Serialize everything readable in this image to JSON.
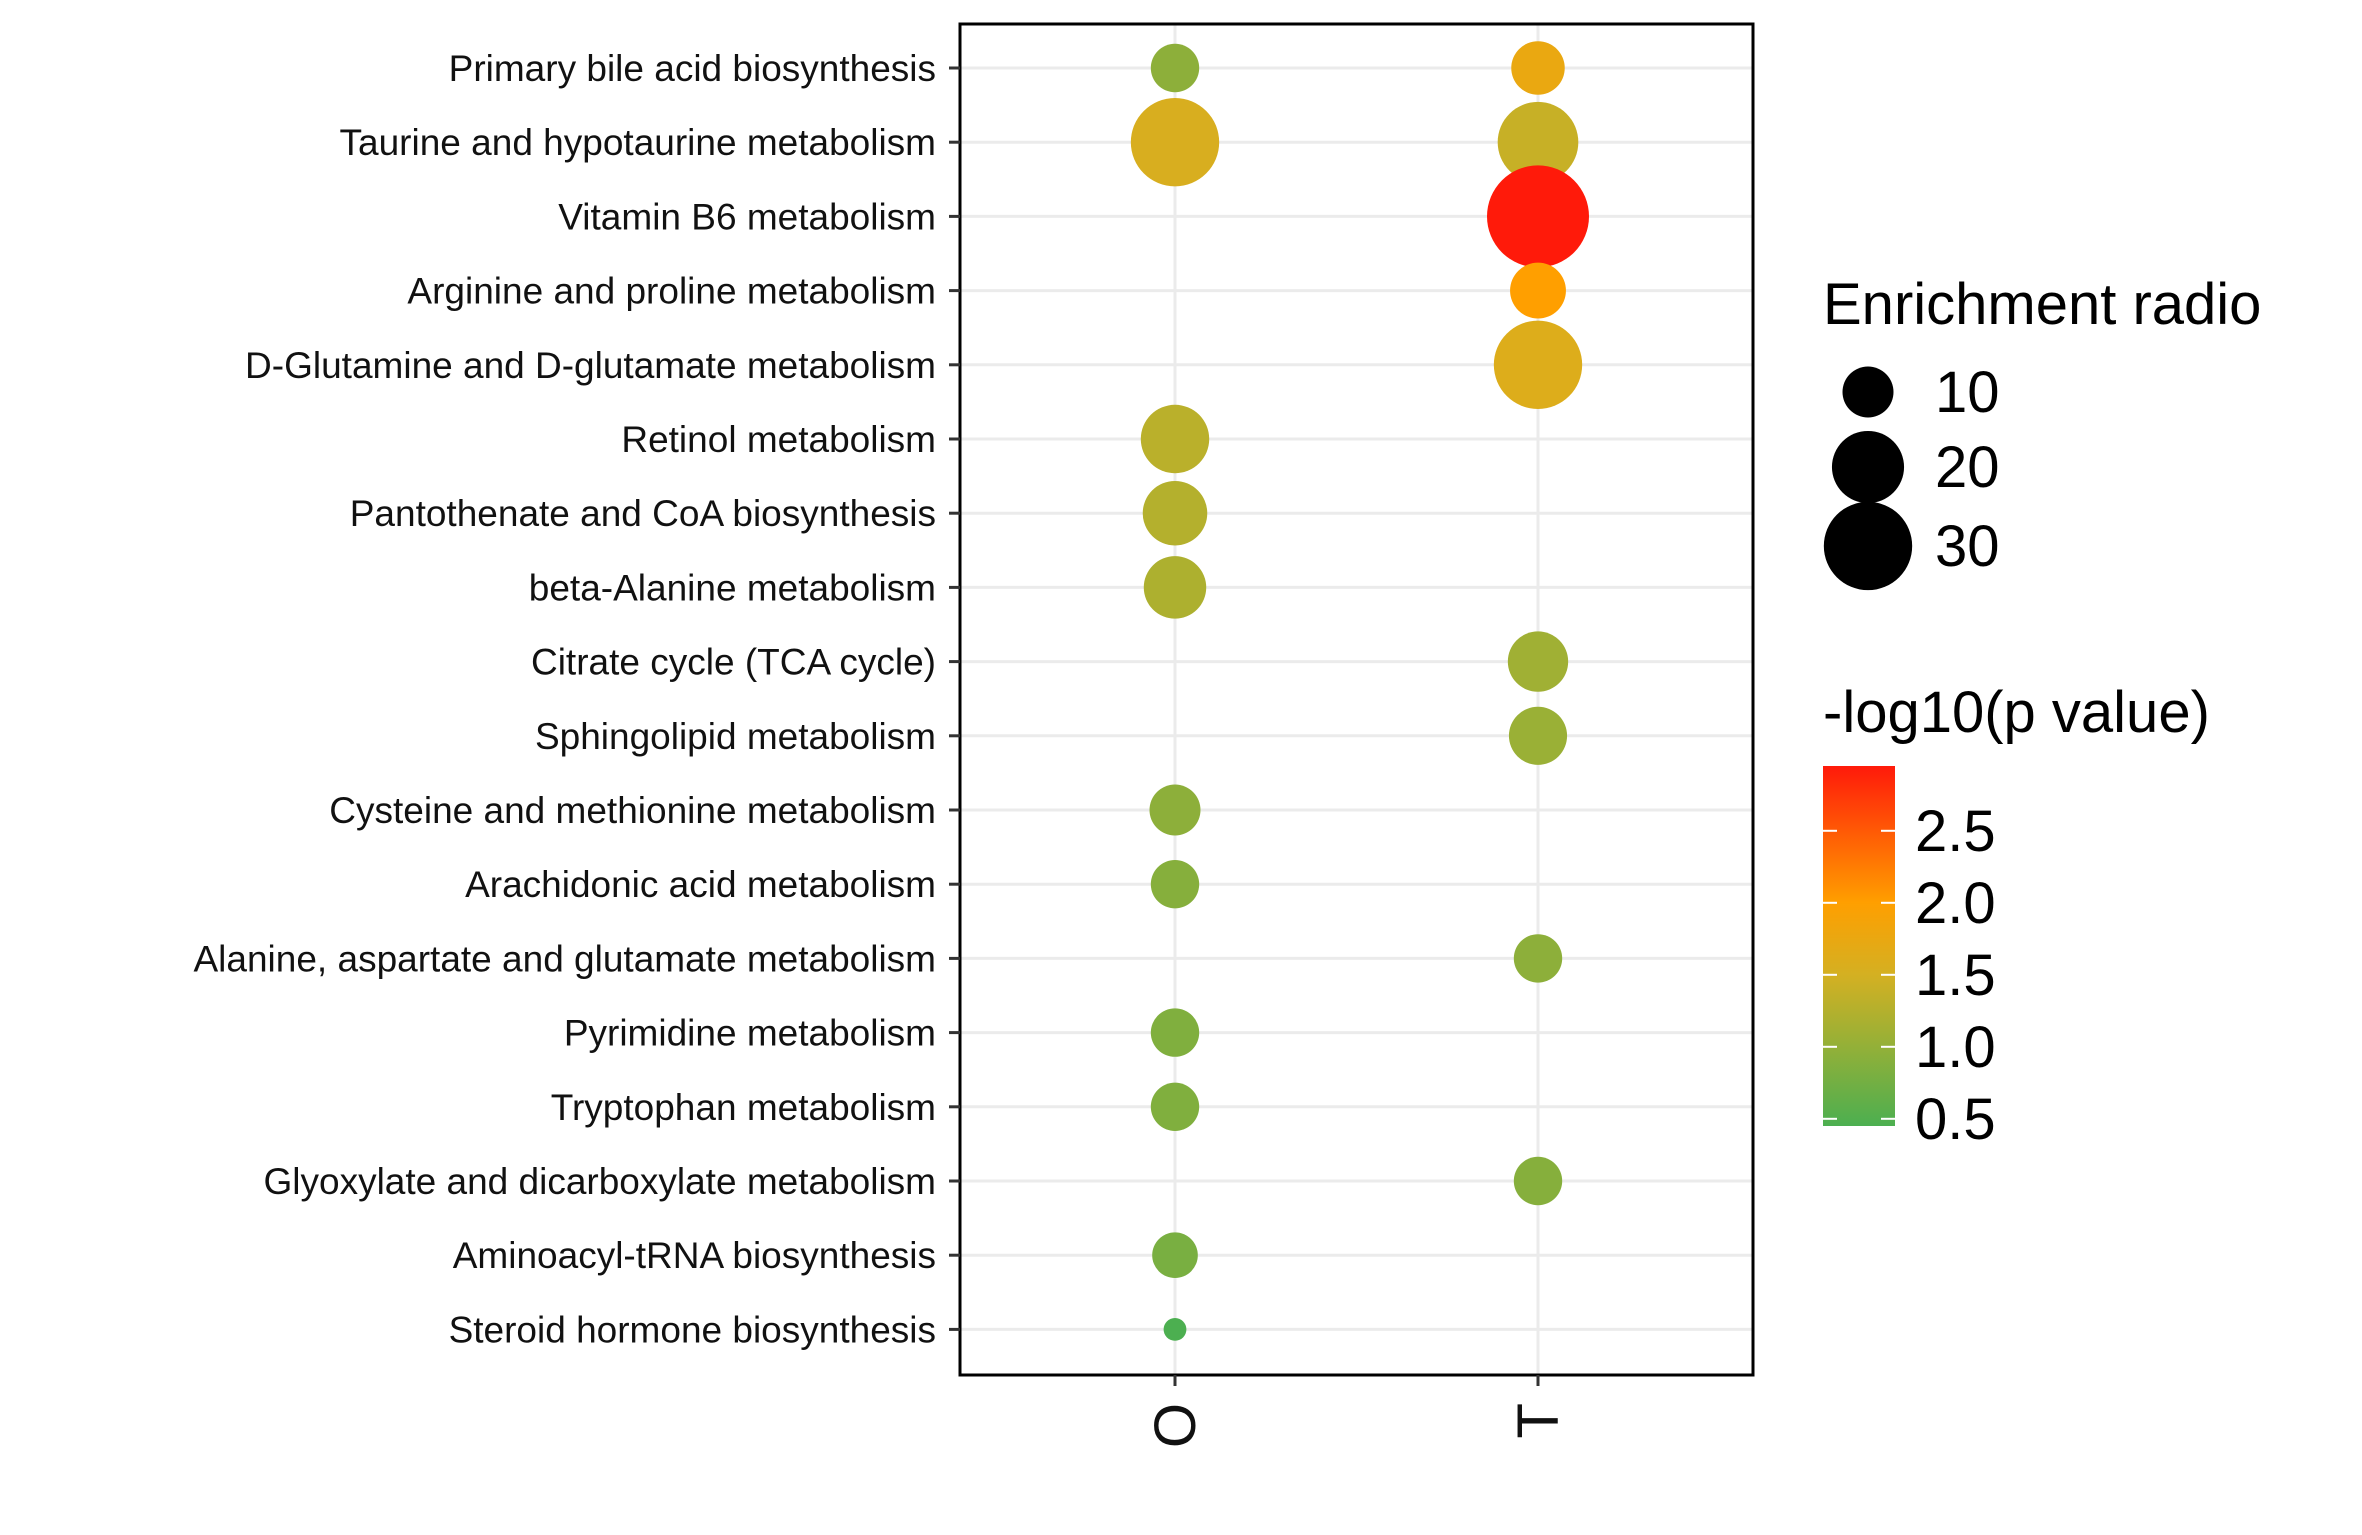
{
  "chart_data": {
    "type": "scatter",
    "subtype": "bubble",
    "x_categories": [
      "O",
      "T"
    ],
    "y_categories": [
      "Primary bile acid biosynthesis",
      "Taurine and hypotaurine metabolism",
      "Vitamin B6 metabolism",
      "Arginine and proline metabolism",
      "D-Glutamine and D-glutamate metabolism",
      "Retinol metabolism",
      "Pantothenate and CoA biosynthesis",
      "beta-Alanine metabolism",
      "Citrate cycle (TCA cycle)",
      "Sphingolipid metabolism",
      "Cysteine and methionine metabolism",
      "Arachidonic acid metabolism",
      "Alanine, aspartate and glutamate metabolism",
      "Pyrimidine metabolism",
      "Tryptophan metabolism",
      "Glyoxylate and dicarboxylate metabolism",
      "Aminoacyl-tRNA biosynthesis",
      "Steroid hormone biosynthesis"
    ],
    "points": [
      {
        "x": "O",
        "y": "Primary bile acid biosynthesis",
        "enrichment": 9,
        "neglog10p": 0.95
      },
      {
        "x": "T",
        "y": "Primary bile acid biosynthesis",
        "enrichment": 11,
        "neglog10p": 1.75
      },
      {
        "x": "O",
        "y": "Taurine and hypotaurine metabolism",
        "enrichment": 30,
        "neglog10p": 1.55
      },
      {
        "x": "T",
        "y": "Taurine and hypotaurine metabolism",
        "enrichment": 25,
        "neglog10p": 1.4
      },
      {
        "x": "T",
        "y": "Vitamin B6 metabolism",
        "enrichment": 40,
        "neglog10p": 2.95
      },
      {
        "x": "T",
        "y": "Arginine and proline metabolism",
        "enrichment": 12,
        "neglog10p": 2.0
      },
      {
        "x": "T",
        "y": "D-Glutamine and D-glutamate metabolism",
        "enrichment": 30,
        "neglog10p": 1.6
      },
      {
        "x": "O",
        "y": "Retinol metabolism",
        "enrichment": 18,
        "neglog10p": 1.3
      },
      {
        "x": "O",
        "y": "Pantothenate and CoA biosynthesis",
        "enrichment": 16,
        "neglog10p": 1.25
      },
      {
        "x": "O",
        "y": "beta-Alanine metabolism",
        "enrichment": 15,
        "neglog10p": 1.2
      },
      {
        "x": "T",
        "y": "Citrate cycle (TCA cycle)",
        "enrichment": 14,
        "neglog10p": 1.1
      },
      {
        "x": "T",
        "y": "Sphingolipid metabolism",
        "enrichment": 13,
        "neglog10p": 1.05
      },
      {
        "x": "O",
        "y": "Cysteine and methionine metabolism",
        "enrichment": 10,
        "neglog10p": 0.95
      },
      {
        "x": "O",
        "y": "Arachidonic acid metabolism",
        "enrichment": 9,
        "neglog10p": 0.9
      },
      {
        "x": "T",
        "y": "Alanine, aspartate and glutamate metabolism",
        "enrichment": 9,
        "neglog10p": 0.95
      },
      {
        "x": "O",
        "y": "Pyrimidine metabolism",
        "enrichment": 9,
        "neglog10p": 0.85
      },
      {
        "x": "O",
        "y": "Tryptophan metabolism",
        "enrichment": 9,
        "neglog10p": 0.85
      },
      {
        "x": "T",
        "y": "Glyoxylate and dicarboxylate metabolism",
        "enrichment": 9,
        "neglog10p": 0.9
      },
      {
        "x": "O",
        "y": "Aminoacyl-tRNA biosynthesis",
        "enrichment": 8,
        "neglog10p": 0.8
      },
      {
        "x": "O",
        "y": "Steroid hormone biosynthesis",
        "enrichment": 2,
        "neglog10p": 0.45
      }
    ],
    "size_legend": {
      "title": "Enrichment radio",
      "values": [
        10,
        20,
        30
      ]
    },
    "color_legend": {
      "title": "-log10(p value)",
      "min": 0.45,
      "max": 2.95,
      "tick_values": [
        0.5,
        1.0,
        1.5,
        2.0,
        2.5
      ],
      "tick_labels": [
        "0.5",
        "1.0",
        "1.5",
        "2.0",
        "2.5"
      ],
      "color_stops": [
        {
          "value": 0.45,
          "color": "#4caf50"
        },
        {
          "value": 1.5,
          "color": "#d4b022"
        },
        {
          "value": 2.0,
          "color": "#ff9f00"
        },
        {
          "value": 2.95,
          "color": "#ff1a0a"
        }
      ]
    },
    "grid": true
  }
}
